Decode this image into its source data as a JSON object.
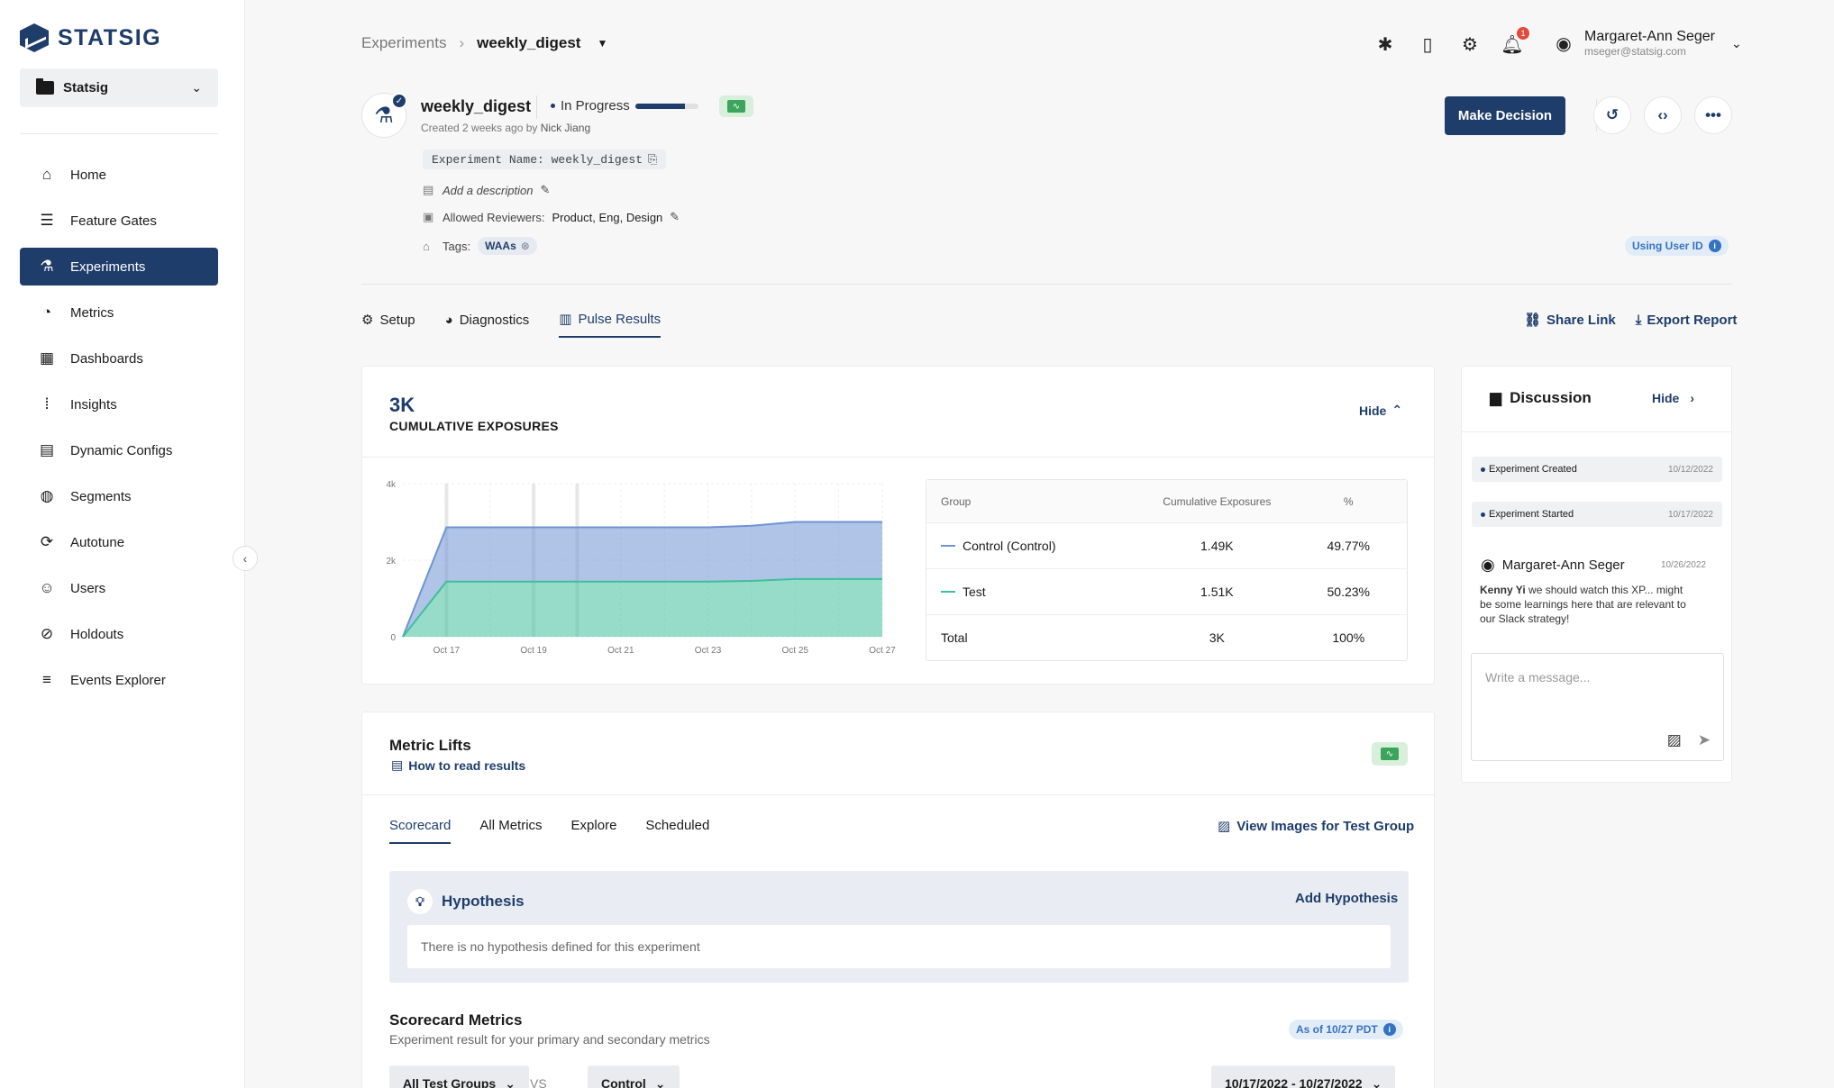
{
  "brand": {
    "name": "STATSIG"
  },
  "project": {
    "name": "Statsig"
  },
  "sidebar": {
    "items": [
      {
        "label": "Home",
        "icon": "home-icon",
        "glyph": "⌂"
      },
      {
        "label": "Feature Gates",
        "icon": "sliders-icon",
        "glyph": "☰"
      },
      {
        "label": "Experiments",
        "icon": "flask-icon",
        "glyph": "⚗",
        "active": true
      },
      {
        "label": "Metrics",
        "icon": "gauge-icon",
        "glyph": "◔"
      },
      {
        "label": "Dashboards",
        "icon": "dashboard-icon",
        "glyph": "▦"
      },
      {
        "label": "Insights",
        "icon": "waveform-icon",
        "glyph": "⦙"
      },
      {
        "label": "Dynamic Configs",
        "icon": "config-icon",
        "glyph": "▤"
      },
      {
        "label": "Segments",
        "icon": "segments-icon",
        "glyph": "◍"
      },
      {
        "label": "Autotune",
        "icon": "autotune-icon",
        "glyph": "⟳"
      },
      {
        "label": "Users",
        "icon": "users-icon",
        "glyph": "☺"
      },
      {
        "label": "Holdouts",
        "icon": "holdout-icon",
        "glyph": "⊘"
      },
      {
        "label": "Events Explorer",
        "icon": "events-icon",
        "glyph": "≡"
      }
    ]
  },
  "header": {
    "breadcrumb_parent": "Experiments",
    "breadcrumb_current": "weekly_digest",
    "notification_count": "1",
    "user_name": "Margaret-Ann Seger",
    "user_email": "mseger@statsig.com"
  },
  "experiment": {
    "name": "weekly_digest",
    "status": "In Progress",
    "progress": 0.78,
    "created": "Created 2 weeks ago by",
    "creator": "Nick Jiang",
    "name_chip": "Experiment Name: weekly_digest",
    "description_placeholder": "Add a description",
    "reviewers_label": "Allowed Reviewers:",
    "reviewers": "Product, Eng, Design",
    "tags_label": "Tags:",
    "tag": "WAAs",
    "make_decision": "Make Decision",
    "id_type": "Using User ID"
  },
  "tabs": [
    {
      "label": "Setup",
      "icon": "gear-icon",
      "glyph": "⚙"
    },
    {
      "label": "Diagnostics",
      "icon": "diagnostics-icon",
      "glyph": "◕"
    },
    {
      "label": "Pulse Results",
      "icon": "bar-chart-icon",
      "glyph": "▥",
      "active": true
    }
  ],
  "tab_actions": {
    "share": "Share Link",
    "export": "Export Report"
  },
  "exposures": {
    "total": "3K",
    "label": "CUMULATIVE EXPOSURES",
    "hide": "Hide",
    "table": {
      "headers": [
        "Group",
        "Cumulative Exposures",
        "%"
      ],
      "rows": [
        {
          "group": "Control (Control)",
          "exposures": "1.49K",
          "pct": "49.77%",
          "color": "#6f93d6"
        },
        {
          "group": "Test",
          "exposures": "1.51K",
          "pct": "50.23%",
          "color": "#3fbf9a"
        },
        {
          "group": "Total",
          "exposures": "3K",
          "pct": "100%"
        }
      ]
    }
  },
  "chart_data": {
    "type": "area",
    "x": [
      "Oct 16",
      "Oct 17",
      "Oct 18",
      "Oct 19",
      "Oct 20",
      "Oct 21",
      "Oct 22",
      "Oct 23",
      "Oct 24",
      "Oct 25",
      "Oct 26",
      "Oct 27"
    ],
    "tick_labels": [
      "Oct 17",
      "Oct 19",
      "Oct 21",
      "Oct 23",
      "Oct 25",
      "Oct 27"
    ],
    "y_tick_labels": [
      "0",
      "2k",
      "4k"
    ],
    "ylim": [
      0,
      4000
    ],
    "stacked": true,
    "series": [
      {
        "name": "Control (Control)",
        "values": [
          0,
          1420,
          1420,
          1420,
          1420,
          1420,
          1420,
          1420,
          1440,
          1490,
          1490,
          1490
        ],
        "color": "#6f93d6"
      },
      {
        "name": "Test",
        "values": [
          0,
          1440,
          1440,
          1440,
          1440,
          1440,
          1440,
          1440,
          1460,
          1510,
          1510,
          1510
        ],
        "color": "#3fbf9a"
      }
    ]
  },
  "metric_lifts": {
    "title": "Metric Lifts",
    "how_to": "How to read results",
    "sub_tabs": [
      "Scorecard",
      "All Metrics",
      "Explore",
      "Scheduled"
    ],
    "view_images": "View Images for Test Group",
    "hypothesis_title": "Hypothesis",
    "add_hypothesis": "Add Hypothesis",
    "hypothesis_placeholder": "There is no hypothesis defined for this experiment",
    "scorecard_title": "Scorecard Metrics",
    "scorecard_sub": "Experiment result for your primary and secondary metrics",
    "as_of": "As of 10/27 PDT",
    "group_filter": "All Test Groups",
    "vs": "VS",
    "compare_filter": "Control",
    "date_range": "10/17/2022 - 10/27/2022"
  },
  "discussion": {
    "title": "Discussion",
    "hide": "Hide",
    "events": [
      {
        "label": "Experiment Created",
        "date": "10/12/2022"
      },
      {
        "label": "Experiment Started",
        "date": "10/17/2022"
      }
    ],
    "comment": {
      "author": "Margaret-Ann Seger",
      "date": "10/26/2022",
      "mention": "Kenny Yi",
      "text": " we should watch this XP... might be some learnings here that are relevant to our Slack strategy!"
    },
    "message_placeholder": "Write a message..."
  }
}
